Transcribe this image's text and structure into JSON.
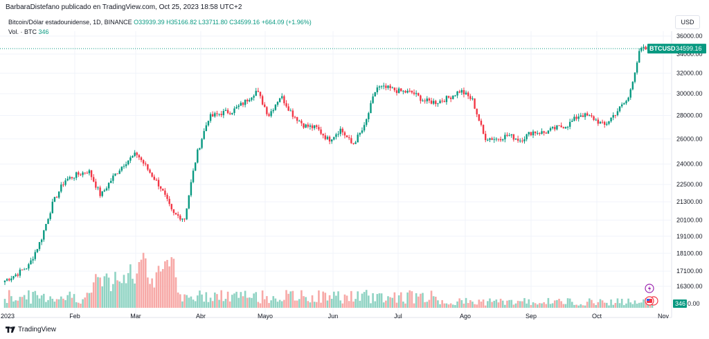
{
  "header": {
    "text": "BarbaraDistefano publicado en TradingView.com, Oct 25, 2023 18:58 UTC+2"
  },
  "legend": {
    "symbol": "Bitcoin/Dólar estadounidense, 1D, BINANCE",
    "open": "O33939.39",
    "high": "H35166.82",
    "low": "L33711.80",
    "close": "C34599.16",
    "change": "+664.09 (+1.96%)",
    "volume_label": "Vol. · BTC",
    "volume_value": "346"
  },
  "scale_label": "USD",
  "footer": {
    "brand": "TradingView"
  },
  "colors": {
    "up": "#089981",
    "down": "#f23645",
    "vol_up": "#8fd3c3",
    "vol_down": "#f7a9a7",
    "grid": "#f0f3fa"
  },
  "chart_data": {
    "type": "candlestick",
    "title": "Bitcoin/Dólar estadounidense, 1D, BINANCE",
    "y_ticks": [
      36000,
      34000,
      32000,
      30000,
      28000,
      26000,
      24000,
      22500,
      21300,
      20100,
      19100,
      18100,
      17100,
      16300
    ],
    "y_tick_labels": [
      "36000.00",
      "34000.00",
      "32000.00",
      "30000.00",
      "28000.00",
      "26000.00",
      "24000.00",
      "22500.00",
      "21300.00",
      "20100.00",
      "19100.00",
      "18100.00",
      "17100.00",
      "16300.00"
    ],
    "x_labels": [
      "2023",
      "Feb",
      "Mar",
      "Abr",
      "Mayo",
      "Jun",
      "Jul",
      "Ago",
      "Sep",
      "Oct",
      "Nov"
    ],
    "log_scale": true,
    "last_price": {
      "label": "BTCUSD",
      "value": "34599.16"
    },
    "volume_last": {
      "value": "346",
      "axis_label": "0.00"
    },
    "weekly_close": [
      16600,
      16950,
      17400,
      18850,
      21200,
      22800,
      23200,
      23500,
      21700,
      23000,
      24100,
      24800,
      23500,
      22300,
      20500,
      20200,
      24700,
      27800,
      28200,
      28400,
      29200,
      30300,
      28000,
      29800,
      28100,
      27100,
      26900,
      25900,
      26800,
      25500,
      27000,
      30600,
      30500,
      30200,
      30100,
      29300,
      29200,
      29600,
      30300,
      29400,
      26100,
      26000,
      26300,
      25900,
      26600,
      26500,
      26900,
      27200,
      28100,
      27800,
      27100,
      28300,
      29500,
      34500,
      34599
    ]
  }
}
